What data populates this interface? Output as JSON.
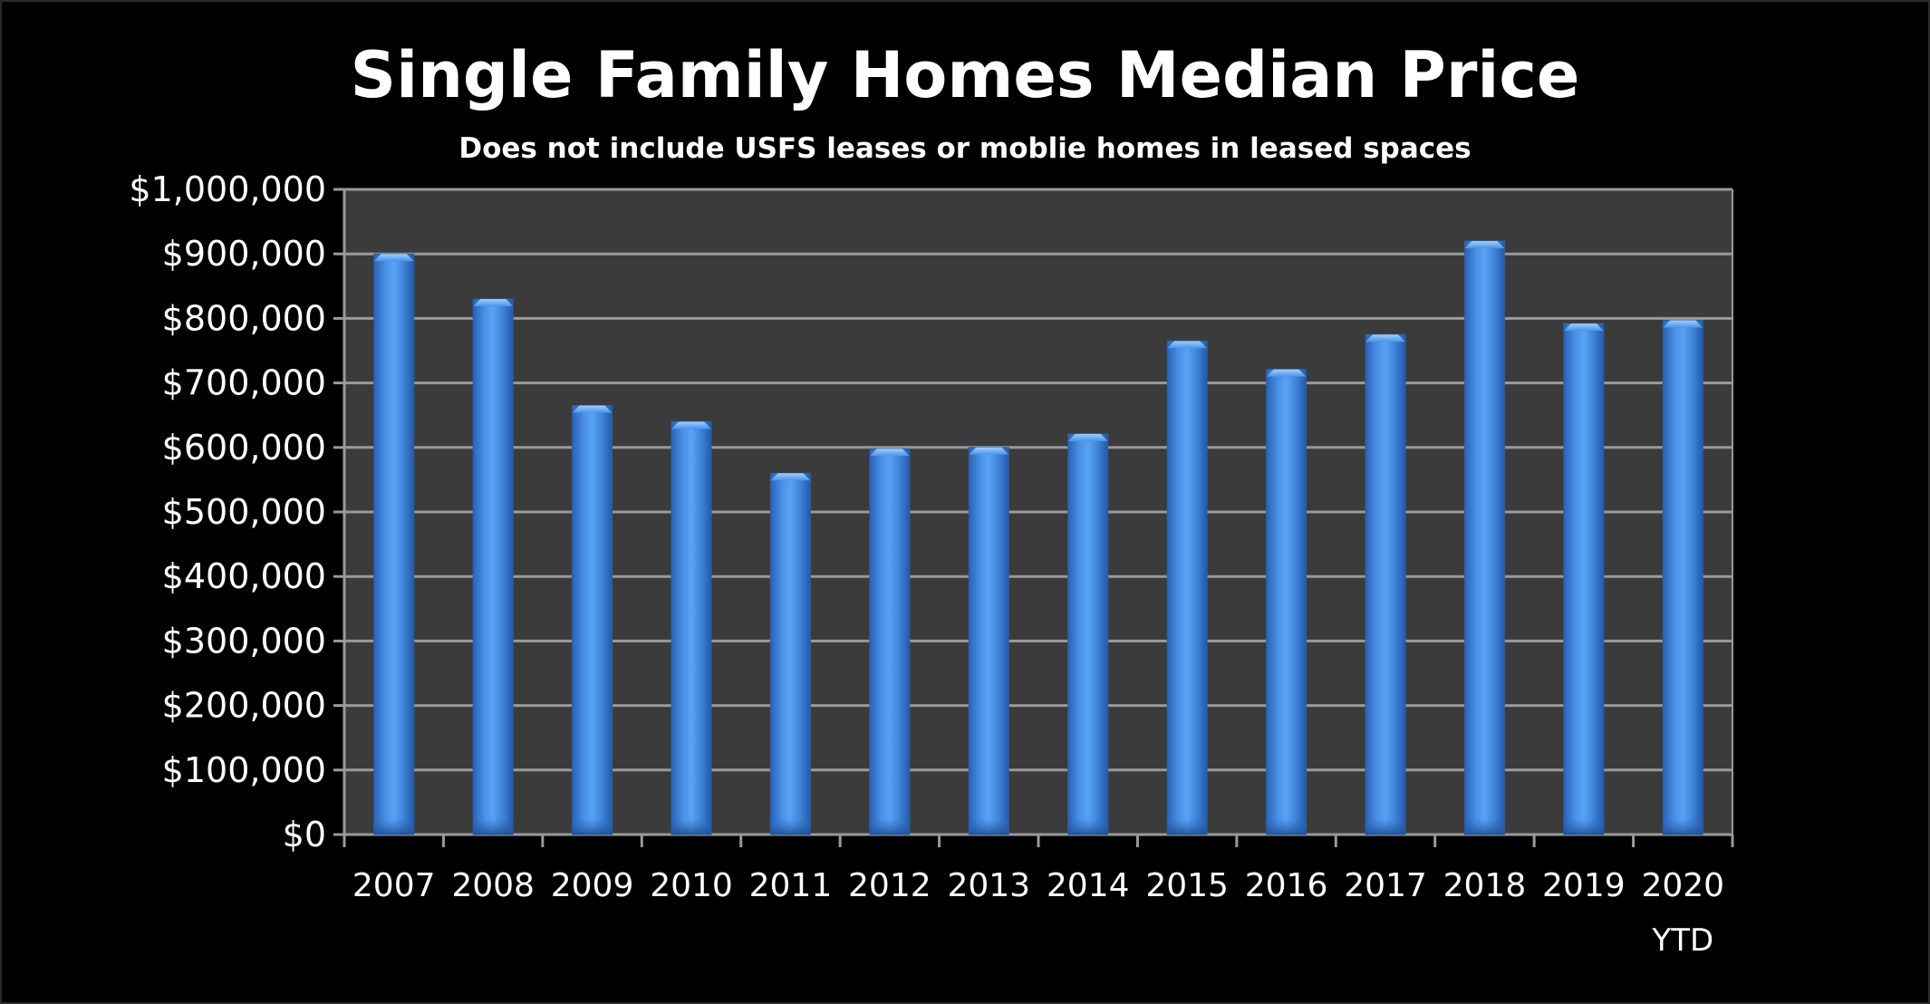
{
  "chart_data": {
    "type": "bar",
    "title": "Single Family Homes Median Price",
    "subtitle": "Does not include USFS leases or moblie homes in leased spaces",
    "xlabel": "",
    "ylabel": "",
    "categories": [
      "2007",
      "2008",
      "2009",
      "2010",
      "2011",
      "2012",
      "2013",
      "2014",
      "2015",
      "2016",
      "2017",
      "2018",
      "2019",
      "2020"
    ],
    "category_sublabels": [
      "",
      "",
      "",
      "",
      "",
      "",
      "",
      "",
      "",
      "",
      "",
      "",
      "",
      "YTD"
    ],
    "values": [
      900000,
      830000,
      665000,
      640000,
      560000,
      598000,
      600000,
      621000,
      765000,
      721000,
      775000,
      920000,
      792000,
      797000
    ],
    "ylim": [
      0,
      1000000
    ],
    "yticks": [
      0,
      100000,
      200000,
      300000,
      400000,
      500000,
      600000,
      700000,
      800000,
      900000,
      1000000
    ],
    "ytick_labels": [
      "$0",
      "$100,000",
      "$200,000",
      "$300,000",
      "$400,000",
      "$500,000",
      "$600,000",
      "$700,000",
      "$800,000",
      "$900,000",
      "$1,000,000"
    ],
    "grid": true,
    "legend": "none",
    "colors": {
      "background": "#000000",
      "plot_area": "#3b3b3b",
      "gridline": "#9a9a9a",
      "bar": "#3a7fd5",
      "bar_edge": "#2a5fa8",
      "text": "#ffffff"
    }
  }
}
